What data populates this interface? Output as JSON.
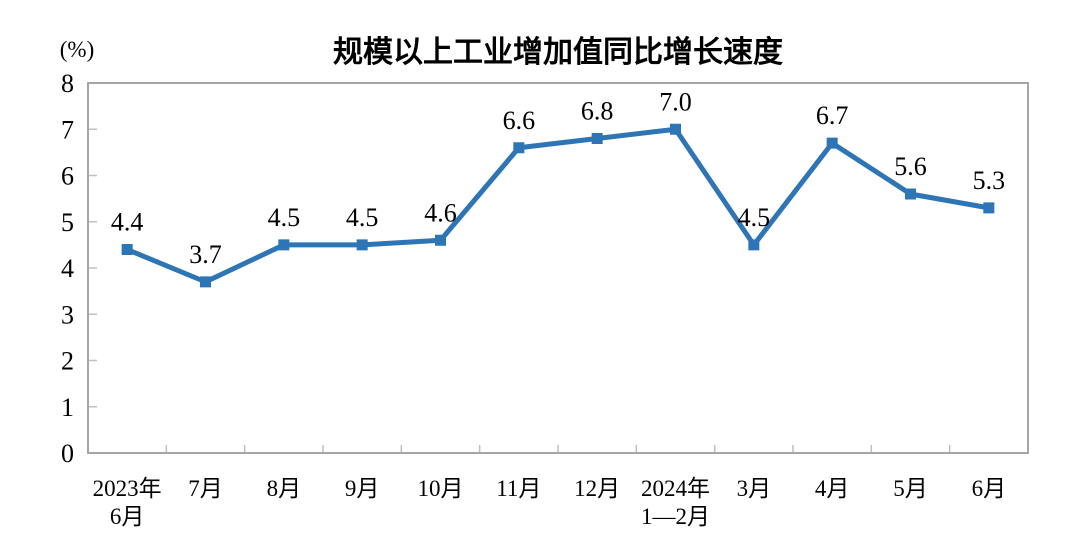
{
  "chart_data": {
    "type": "line",
    "title": "规模以上工业增加值同比增长速度",
    "ylabel": "(%)",
    "xlabel": "",
    "categories": [
      [
        "2023年",
        "6月"
      ],
      [
        "7月"
      ],
      [
        "8月"
      ],
      [
        "9月"
      ],
      [
        "10月"
      ],
      [
        "11月"
      ],
      [
        "12月"
      ],
      [
        "2024年",
        "1—2月"
      ],
      [
        "3月"
      ],
      [
        "4月"
      ],
      [
        "5月"
      ],
      [
        "6月"
      ]
    ],
    "values": [
      4.4,
      3.7,
      4.5,
      4.5,
      4.6,
      6.6,
      6.8,
      7.0,
      4.5,
      6.7,
      5.6,
      5.3
    ],
    "data_labels": [
      "4.4",
      "3.7",
      "4.5",
      "4.5",
      "4.6",
      "6.6",
      "6.8",
      "7.0",
      "4.5",
      "6.7",
      "5.6",
      "5.3"
    ],
    "ylim": [
      0,
      8
    ],
    "yticks": [
      0,
      1,
      2,
      3,
      4,
      5,
      6,
      7,
      8
    ],
    "grid": false,
    "legend": "none",
    "colors": {
      "line": "#2E75B6",
      "marker": "#2E75B6",
      "border": "#A6A6A6",
      "tick": "#BFBFBF",
      "text": "#000000"
    }
  }
}
